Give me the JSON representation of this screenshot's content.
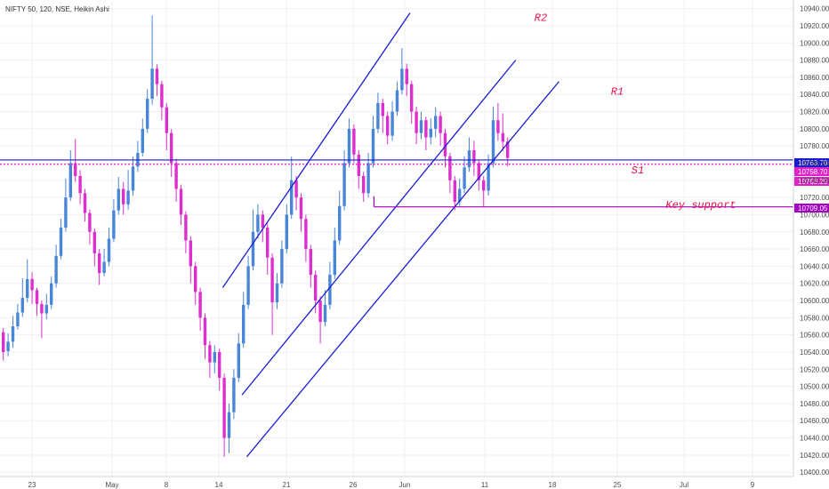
{
  "header": {
    "title": "NIFTY 50, 120, NSE, Heikin Ashi"
  },
  "colors": {
    "up": "#4a86d8",
    "down": "#dd2fce",
    "channel": "#1a1ad6",
    "support": "#a400c4",
    "annotation": "#e8124a",
    "grid": "#eef0f3",
    "price_tag_blue": "#1a1ad6",
    "price_tag_magenta": "#e020c8"
  },
  "chart_data": {
    "type": "candlestick",
    "title": "NIFTY 50, 120, NSE, Heikin Ashi",
    "y_range": [
      10395,
      10950
    ],
    "y_ticks": [
      10400,
      10420,
      10440,
      10460,
      10480,
      10500,
      10520,
      10540,
      10560,
      10580,
      10600,
      10620,
      10640,
      10660,
      10680,
      10700,
      10720,
      10740,
      10760,
      10780,
      10800,
      10820,
      10840,
      10860,
      10880,
      10900,
      10920,
      10940
    ],
    "x_ticks": [
      "23",
      "May",
      "8",
      "14",
      "21",
      "26",
      "Jun",
      "11",
      "18",
      "25",
      "Jul",
      "9"
    ],
    "grid": true,
    "candles_approx": [
      {
        "o": 10563,
        "c": 10540,
        "h": 10568,
        "l": 10530
      },
      {
        "o": 10541,
        "c": 10552,
        "h": 10562,
        "l": 10535
      },
      {
        "o": 10552,
        "c": 10570,
        "h": 10582,
        "l": 10545
      },
      {
        "o": 10570,
        "c": 10586,
        "h": 10596,
        "l": 10566
      },
      {
        "o": 10586,
        "c": 10603,
        "h": 10626,
        "l": 10581
      },
      {
        "o": 10603,
        "c": 10625,
        "h": 10648,
        "l": 10598
      },
      {
        "o": 10625,
        "c": 10612,
        "h": 10633,
        "l": 10596
      },
      {
        "o": 10612,
        "c": 10596,
        "h": 10615,
        "l": 10582
      },
      {
        "o": 10596,
        "c": 10585,
        "h": 10600,
        "l": 10556
      },
      {
        "o": 10585,
        "c": 10595,
        "h": 10608,
        "l": 10578
      },
      {
        "o": 10595,
        "c": 10620,
        "h": 10628,
        "l": 10590
      },
      {
        "o": 10620,
        "c": 10652,
        "h": 10665,
        "l": 10615
      },
      {
        "o": 10652,
        "c": 10685,
        "h": 10695,
        "l": 10648
      },
      {
        "o": 10685,
        "c": 10720,
        "h": 10742,
        "l": 10680
      },
      {
        "o": 10720,
        "c": 10760,
        "h": 10775,
        "l": 10716
      },
      {
        "o": 10760,
        "c": 10745,
        "h": 10788,
        "l": 10738
      },
      {
        "o": 10745,
        "c": 10725,
        "h": 10752,
        "l": 10712
      },
      {
        "o": 10725,
        "c": 10702,
        "h": 10730,
        "l": 10692
      },
      {
        "o": 10702,
        "c": 10680,
        "h": 10706,
        "l": 10665
      },
      {
        "o": 10680,
        "c": 10655,
        "h": 10684,
        "l": 10640
      },
      {
        "o": 10655,
        "c": 10632,
        "h": 10660,
        "l": 10618
      },
      {
        "o": 10632,
        "c": 10645,
        "h": 10660,
        "l": 10628
      },
      {
        "o": 10645,
        "c": 10672,
        "h": 10685,
        "l": 10640
      },
      {
        "o": 10672,
        "c": 10705,
        "h": 10718,
        "l": 10668
      },
      {
        "o": 10705,
        "c": 10730,
        "h": 10744,
        "l": 10700
      },
      {
        "o": 10730,
        "c": 10712,
        "h": 10738,
        "l": 10700
      },
      {
        "o": 10712,
        "c": 10728,
        "h": 10752,
        "l": 10706
      },
      {
        "o": 10728,
        "c": 10756,
        "h": 10768,
        "l": 10722
      },
      {
        "o": 10756,
        "c": 10772,
        "h": 10786,
        "l": 10750
      },
      {
        "o": 10772,
        "c": 10800,
        "h": 10812,
        "l": 10768
      },
      {
        "o": 10800,
        "c": 10835,
        "h": 10846,
        "l": 10795
      },
      {
        "o": 10835,
        "c": 10870,
        "h": 10932,
        "l": 10828
      },
      {
        "o": 10870,
        "c": 10852,
        "h": 10875,
        "l": 10838
      },
      {
        "o": 10852,
        "c": 10825,
        "h": 10856,
        "l": 10810
      },
      {
        "o": 10825,
        "c": 10795,
        "h": 10830,
        "l": 10775
      },
      {
        "o": 10795,
        "c": 10760,
        "h": 10800,
        "l": 10744
      },
      {
        "o": 10760,
        "c": 10730,
        "h": 10765,
        "l": 10715
      },
      {
        "o": 10730,
        "c": 10700,
        "h": 10735,
        "l": 10688
      },
      {
        "o": 10700,
        "c": 10670,
        "h": 10704,
        "l": 10655
      },
      {
        "o": 10670,
        "c": 10640,
        "h": 10675,
        "l": 10620
      },
      {
        "o": 10640,
        "c": 10610,
        "h": 10645,
        "l": 10595
      },
      {
        "o": 10610,
        "c": 10580,
        "h": 10615,
        "l": 10565
      },
      {
        "o": 10580,
        "c": 10548,
        "h": 10585,
        "l": 10532
      },
      {
        "o": 10548,
        "c": 10528,
        "h": 10553,
        "l": 10510
      },
      {
        "o": 10528,
        "c": 10540,
        "h": 10548,
        "l": 10515
      },
      {
        "o": 10540,
        "c": 10510,
        "h": 10544,
        "l": 10495
      },
      {
        "o": 10510,
        "c": 10440,
        "h": 10515,
        "l": 10418
      },
      {
        "o": 10440,
        "c": 10470,
        "h": 10480,
        "l": 10422
      },
      {
        "o": 10470,
        "c": 10510,
        "h": 10520,
        "l": 10462
      },
      {
        "o": 10510,
        "c": 10550,
        "h": 10562,
        "l": 10505
      },
      {
        "o": 10550,
        "c": 10595,
        "h": 10610,
        "l": 10545
      },
      {
        "o": 10595,
        "c": 10640,
        "h": 10652,
        "l": 10590
      },
      {
        "o": 10640,
        "c": 10680,
        "h": 10706,
        "l": 10635
      },
      {
        "o": 10680,
        "c": 10700,
        "h": 10712,
        "l": 10672
      },
      {
        "o": 10700,
        "c": 10685,
        "h": 10705,
        "l": 10668
      },
      {
        "o": 10685,
        "c": 10650,
        "h": 10690,
        "l": 10630
      },
      {
        "o": 10650,
        "c": 10598,
        "h": 10655,
        "l": 10560
      },
      {
        "o": 10598,
        "c": 10620,
        "h": 10632,
        "l": 10590
      },
      {
        "o": 10620,
        "c": 10660,
        "h": 10670,
        "l": 10615
      },
      {
        "o": 10660,
        "c": 10700,
        "h": 10712,
        "l": 10655
      },
      {
        "o": 10700,
        "c": 10740,
        "h": 10768,
        "l": 10695
      },
      {
        "o": 10740,
        "c": 10720,
        "h": 10745,
        "l": 10705
      },
      {
        "o": 10720,
        "c": 10695,
        "h": 10725,
        "l": 10680
      },
      {
        "o": 10695,
        "c": 10660,
        "h": 10700,
        "l": 10645
      },
      {
        "o": 10660,
        "c": 10630,
        "h": 10665,
        "l": 10615
      },
      {
        "o": 10630,
        "c": 10600,
        "h": 10635,
        "l": 10585
      },
      {
        "o": 10600,
        "c": 10575,
        "h": 10605,
        "l": 10550
      },
      {
        "o": 10575,
        "c": 10595,
        "h": 10612,
        "l": 10570
      },
      {
        "o": 10595,
        "c": 10630,
        "h": 10645,
        "l": 10590
      },
      {
        "o": 10630,
        "c": 10670,
        "h": 10685,
        "l": 10625
      },
      {
        "o": 10670,
        "c": 10710,
        "h": 10728,
        "l": 10665
      },
      {
        "o": 10710,
        "c": 10760,
        "h": 10775,
        "l": 10705
      },
      {
        "o": 10760,
        "c": 10800,
        "h": 10812,
        "l": 10755
      },
      {
        "o": 10800,
        "c": 10770,
        "h": 10805,
        "l": 10760
      },
      {
        "o": 10770,
        "c": 10745,
        "h": 10775,
        "l": 10730
      },
      {
        "o": 10745,
        "c": 10725,
        "h": 10750,
        "l": 10715
      },
      {
        "o": 10725,
        "c": 10760,
        "h": 10772,
        "l": 10720
      },
      {
        "o": 10760,
        "c": 10800,
        "h": 10815,
        "l": 10755
      },
      {
        "o": 10800,
        "c": 10830,
        "h": 10842,
        "l": 10795
      },
      {
        "o": 10830,
        "c": 10815,
        "h": 10835,
        "l": 10795
      },
      {
        "o": 10815,
        "c": 10792,
        "h": 10820,
        "l": 10782
      },
      {
        "o": 10792,
        "c": 10820,
        "h": 10832,
        "l": 10786
      },
      {
        "o": 10820,
        "c": 10845,
        "h": 10855,
        "l": 10815
      },
      {
        "o": 10845,
        "c": 10870,
        "h": 10894,
        "l": 10840
      },
      {
        "o": 10870,
        "c": 10852,
        "h": 10876,
        "l": 10838
      },
      {
        "o": 10852,
        "c": 10820,
        "h": 10856,
        "l": 10806
      },
      {
        "o": 10820,
        "c": 10795,
        "h": 10826,
        "l": 10782
      },
      {
        "o": 10795,
        "c": 10810,
        "h": 10820,
        "l": 10788
      },
      {
        "o": 10810,
        "c": 10790,
        "h": 10814,
        "l": 10775
      },
      {
        "o": 10790,
        "c": 10800,
        "h": 10812,
        "l": 10782
      },
      {
        "o": 10800,
        "c": 10815,
        "h": 10825,
        "l": 10790
      },
      {
        "o": 10815,
        "c": 10795,
        "h": 10820,
        "l": 10780
      },
      {
        "o": 10795,
        "c": 10768,
        "h": 10800,
        "l": 10755
      },
      {
        "o": 10768,
        "c": 10740,
        "h": 10772,
        "l": 10725
      },
      {
        "o": 10740,
        "c": 10715,
        "h": 10745,
        "l": 10705
      },
      {
        "o": 10715,
        "c": 10730,
        "h": 10742,
        "l": 10710
      },
      {
        "o": 10730,
        "c": 10755,
        "h": 10768,
        "l": 10725
      },
      {
        "o": 10755,
        "c": 10775,
        "h": 10790,
        "l": 10750
      },
      {
        "o": 10775,
        "c": 10760,
        "h": 10786,
        "l": 10745
      },
      {
        "o": 10760,
        "c": 10740,
        "h": 10764,
        "l": 10728
      },
      {
        "o": 10740,
        "c": 10728,
        "h": 10745,
        "l": 10710
      },
      {
        "o": 10728,
        "c": 10760,
        "h": 10770,
        "l": 10722
      },
      {
        "o": 10760,
        "c": 10810,
        "h": 10826,
        "l": 10755
      },
      {
        "o": 10810,
        "c": 10795,
        "h": 10830,
        "l": 10786
      },
      {
        "o": 10795,
        "c": 10785,
        "h": 10818,
        "l": 10774
      },
      {
        "o": 10785,
        "c": 10766,
        "h": 10790,
        "l": 10756
      }
    ],
    "price_tags": [
      {
        "value": 10763.7,
        "label": "10763.70",
        "color": "#1a1ad6"
      },
      {
        "value": 10758.7,
        "label": "10758.70",
        "color": "#e020c8"
      },
      {
        "value": 10758.25,
        "label": "10758.25",
        "color": "#e020c8"
      },
      {
        "value": 10709.05,
        "label": "10709.05",
        "color": "#a400c4"
      }
    ],
    "horizontal_lines": [
      {
        "value": 10763.7,
        "color": "#1a1ad6"
      },
      {
        "value": 10758.7,
        "color": "#e020c8",
        "dotted": true
      }
    ],
    "channel_lines": [
      {
        "from": {
          "i": 46,
          "p": 10615
        },
        "to": {
          "i": 85,
          "p": 10935
        }
      },
      {
        "from": {
          "i": 50,
          "p": 10490
        },
        "to": {
          "i": 107,
          "p": 10880
        }
      },
      {
        "from": {
          "i": 51,
          "p": 10418
        },
        "to": {
          "i": 116,
          "p": 10855
        }
      }
    ],
    "support_line": {
      "from_i": 76,
      "to_i": 137,
      "value": 10709.05
    },
    "annotations": [
      {
        "text": "R2",
        "i": 87,
        "p": 10930
      },
      {
        "text": "R1",
        "i": 100,
        "p": 10844
      },
      {
        "text": "S1",
        "i": 102,
        "p": 10752
      },
      {
        "text": "Key support",
        "i": 108,
        "p": 10712
      }
    ]
  }
}
